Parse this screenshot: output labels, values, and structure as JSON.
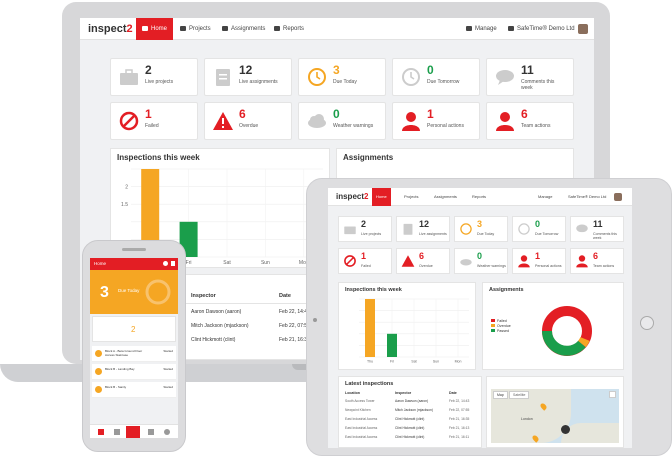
{
  "brand": {
    "name_a": "inspect",
    "name_b": "2",
    "accent": "#e31e24",
    "orange": "#f5a623",
    "green": "#1a9e4b"
  },
  "laptop": {
    "nav": {
      "items": [
        "Home",
        "Projects",
        "Assignments",
        "Reports"
      ],
      "manage": "Manage",
      "company": "SafeTime® Demo Ltd"
    },
    "stats": [
      {
        "num": "2",
        "label": "Live projects",
        "icon": "briefcase-icon"
      },
      {
        "num": "12",
        "label": "Live assignments",
        "icon": "clipboard-icon"
      },
      {
        "num": "3",
        "label": "Due Today",
        "icon": "clock-icon"
      },
      {
        "num": "0",
        "label": "Due Tomorrow",
        "icon": "clock-icon"
      },
      {
        "num": "11",
        "label": "Comments this week",
        "icon": "comment-icon"
      },
      {
        "num": "1",
        "label": "Failed",
        "icon": "ban-icon"
      },
      {
        "num": "6",
        "label": "Overdue",
        "icon": "warning-icon"
      },
      {
        "num": "0",
        "label": "Weather warnings",
        "icon": "cloud-icon"
      },
      {
        "num": "1",
        "label": "Personal actions",
        "icon": "user-icon"
      },
      {
        "num": "6",
        "label": "Team actions",
        "icon": "team-icon"
      }
    ],
    "inspections_title": "Inspections this week",
    "assignments_title": "Assignments",
    "y_ticks": [
      "2",
      "1.5"
    ],
    "x_ticks": [
      "Thu",
      "Fri",
      "Sat",
      "Sun",
      "Mon"
    ],
    "table": {
      "headers": [
        "Inspector",
        "Date"
      ],
      "rows": [
        [
          "Aaron Dawson (aaron)",
          "Feb 22, 14:4"
        ],
        [
          "Mitch Jackson (mjackson)",
          "Feb 22, 07:5"
        ],
        [
          "Clint Hickmott (clint)",
          "Feb 21, 16:3"
        ]
      ]
    }
  },
  "tablet": {
    "nav": {
      "items": [
        "Home",
        "Projects",
        "Assignments",
        "Reports"
      ],
      "manage": "Manage",
      "company": "SafeTime® Demo Ltd"
    },
    "stats": [
      {
        "num": "2",
        "label": "Live projects"
      },
      {
        "num": "12",
        "label": "Live assignments"
      },
      {
        "num": "3",
        "label": "Due Today"
      },
      {
        "num": "0",
        "label": "Due Tomorrow"
      },
      {
        "num": "11",
        "label": "Comments this week"
      },
      {
        "num": "1",
        "label": "Failed"
      },
      {
        "num": "6",
        "label": "Overdue"
      },
      {
        "num": "0",
        "label": "Weather warnings"
      },
      {
        "num": "1",
        "label": "Personal actions"
      },
      {
        "num": "6",
        "label": "Team actions"
      }
    ],
    "inspections_title": "Inspections this week",
    "assignments_title": "Assignments",
    "latest_title": "Latest inspections",
    "legend": [
      "Failed",
      "Overdue",
      "Passed"
    ],
    "table_headers": [
      "Location",
      "Inspector",
      "Date"
    ],
    "table_rows": [
      [
        "South Access Tower",
        "Aaron Dawson (aaron)",
        "Feb 22, 14:43"
      ],
      [
        "Newpoint Kitchen",
        "Mitch Jackson (mjackson)",
        "Feb 22, 07:55"
      ],
      [
        "East Industrial Access",
        "Clint Hickmott (clint)",
        "Feb 21, 16:35"
      ],
      [
        "East Industrial Access",
        "Clint Hickmott (clint)",
        "Feb 21, 16:13"
      ],
      [
        "East Industrial Access",
        "Clint Hickmott (clint)",
        "Feb 21, 16:11"
      ]
    ],
    "map_tabs": [
      "Map",
      "Satellite"
    ],
    "map_city": "London"
  },
  "phone": {
    "header": "Home",
    "hero_num": "3",
    "hero_label": "Due Today",
    "count": "2",
    "rows": [
      {
        "title": "Block A - Beta Ground Floor Access Staircase",
        "status": "Started"
      },
      {
        "title": "Block B - Landing Bay",
        "status": "Started"
      },
      {
        "title": "Block B - Sanity",
        "status": "Started"
      }
    ]
  },
  "chart_data": {
    "type": "bar",
    "title": "Inspections this week",
    "categories": [
      "Thu",
      "Fri",
      "Sat",
      "Sun",
      "Mon"
    ],
    "series": [
      {
        "values": [
          2.5,
          0,
          0,
          0,
          0
        ],
        "color": "#f5a623"
      },
      {
        "values": [
          0,
          1,
          0,
          0,
          0
        ],
        "color": "#1a9e4b"
      }
    ],
    "ylim": [
      0,
      2.5
    ],
    "yticks": [
      0,
      0.5,
      1,
      1.5,
      2,
      2.5
    ]
  }
}
